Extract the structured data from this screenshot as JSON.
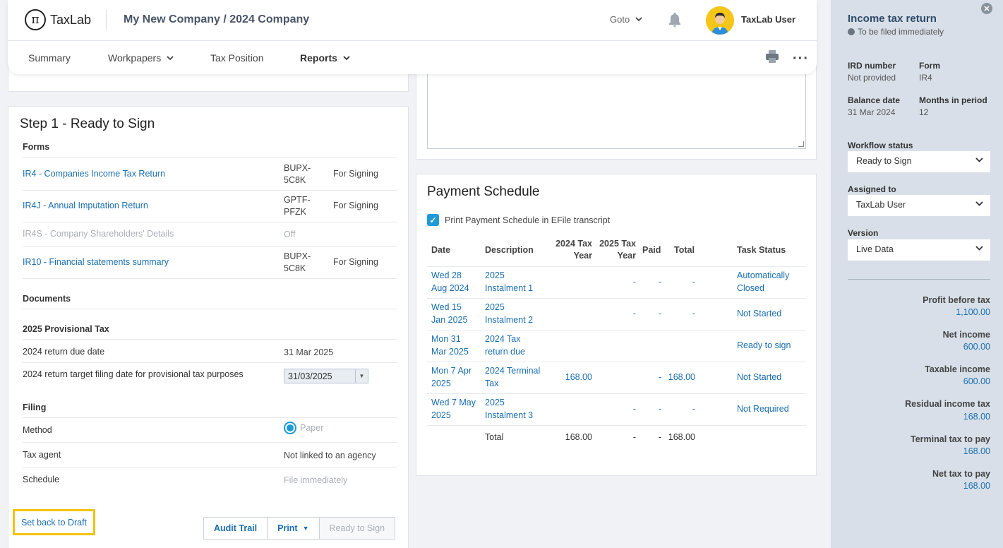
{
  "header": {
    "logo_text": "TaxLab",
    "company": "My New Company / 2024 Company",
    "goto_label": "Goto",
    "user_name": "TaxLab User"
  },
  "nav": {
    "summary": "Summary",
    "workpapers": "Workpapers",
    "tax_position": "Tax Position",
    "reports": "Reports"
  },
  "step": {
    "title": "Step 1 - Ready to Sign",
    "forms_heading": "Forms",
    "forms": [
      {
        "name": "IR4 - Companies Income Tax Return",
        "code": "BUPX-5C8K",
        "status": "For Signing"
      },
      {
        "name": "IR4J - Annual Imputation Return",
        "code": "GPTF-PFZK",
        "status": "For Signing"
      },
      {
        "name": "IR4S - Company Shareholders' Details",
        "code": "Off",
        "status": ""
      },
      {
        "name": "IR10 - Financial statements summary",
        "code": "BUPX-5C8K",
        "status": "For Signing"
      }
    ],
    "documents_heading": "Documents",
    "provisional_heading": "2025 Provisional Tax",
    "due_date_label": "2024 return due date",
    "due_date_value": "31 Mar 2025",
    "target_label": "2024 return target filing date for provisional tax purposes",
    "target_value": "31/03/2025",
    "filing_heading": "Filing",
    "method_label": "Method",
    "method_value": "Paper",
    "agent_label": "Tax agent",
    "agent_value": "Not linked to an agency",
    "schedule_label": "Schedule",
    "schedule_value": "File immediately",
    "btn_draft": "Set back to Draft",
    "btn_audit": "Audit Trail",
    "btn_print": "Print",
    "btn_ready": "Ready to Sign"
  },
  "payment": {
    "title": "Payment Schedule",
    "checkbox_label": "Print Payment Schedule in EFile transcript",
    "headers": {
      "date": "Date",
      "description": "Description",
      "tax2024": "2024 Tax Year",
      "tax2025": "2025 Tax Year",
      "paid": "Paid",
      "total": "Total",
      "status": "Task Status"
    },
    "rows": [
      {
        "date": "Wed 28 Aug 2024",
        "desc": "2025 Instalment 1",
        "t2024": "",
        "t2025": "-",
        "paid": "-",
        "total": "-",
        "status": "Automatically Closed"
      },
      {
        "date": "Wed 15 Jan 2025",
        "desc": "2025 Instalment 2",
        "t2024": "",
        "t2025": "-",
        "paid": "-",
        "total": "-",
        "status": "Not Started"
      },
      {
        "date": "Mon 31 Mar 2025",
        "desc": "2024 Tax return due",
        "t2024": "",
        "t2025": "",
        "paid": "",
        "total": "",
        "status": "Ready to sign"
      },
      {
        "date": "Mon 7 Apr 2025",
        "desc": "2024 Terminal Tax",
        "t2024": "168.00",
        "t2025": "",
        "paid": "-",
        "total": "168.00",
        "status": "Not Started"
      },
      {
        "date": "Wed 7 May 2025",
        "desc": "2025 Instalment 3",
        "t2024": "",
        "t2025": "-",
        "paid": "-",
        "total": "-",
        "status": "Not Required"
      }
    ],
    "total_row": {
      "desc": "Total",
      "t2024": "168.00",
      "t2025": "-",
      "paid": "-",
      "total": "168.00"
    }
  },
  "sidebar": {
    "title": "Income tax return",
    "subtitle": "To be filed immediately",
    "ird_label": "IRD number",
    "ird_value": "Not provided",
    "form_label": "Form",
    "form_value": "IR4",
    "balance_label": "Balance date",
    "balance_value": "31 Mar 2024",
    "months_label": "Months in period",
    "months_value": "12",
    "workflow_label": "Workflow status",
    "workflow_value": "Ready to Sign",
    "assigned_label": "Assigned to",
    "assigned_value": "TaxLab User",
    "version_label": "Version",
    "version_value": "Live Data",
    "metrics": [
      {
        "label": "Profit before tax",
        "value": "1,100.00"
      },
      {
        "label": "Net income",
        "value": "600.00"
      },
      {
        "label": "Taxable income",
        "value": "600.00"
      },
      {
        "label": "Residual income tax",
        "value": "168.00"
      },
      {
        "label": "Terminal tax to pay",
        "value": "168.00"
      },
      {
        "label": "Net tax to pay",
        "value": "168.00"
      }
    ]
  }
}
